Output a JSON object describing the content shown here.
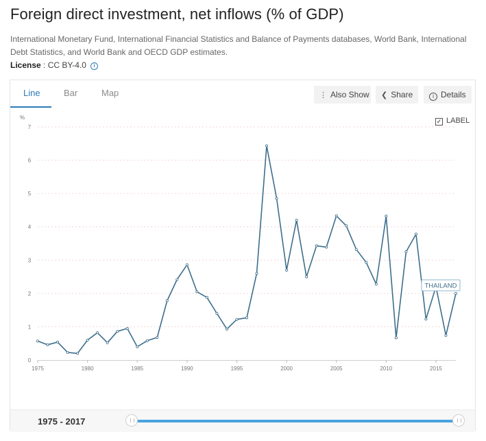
{
  "header": {
    "title": "Foreign direct investment, net inflows (% of GDP)",
    "source": "International Monetary Fund, International Financial Statistics and Balance of Payments databases, World Bank, International Debt Statistics, and World Bank and OECD GDP estimates.",
    "license_label": "License",
    "license_sep": " : ",
    "license_value": "CC BY-4.0",
    "info_glyph": "i"
  },
  "tabs": [
    {
      "label": "Line",
      "active": true
    },
    {
      "label": "Bar",
      "active": false
    },
    {
      "label": "Map",
      "active": false
    }
  ],
  "toolbar": {
    "also_show": "Also Show",
    "share": "Share",
    "details": "Details",
    "also_show_icon": "vertical-dots-icon",
    "share_icon": "share-icon",
    "details_icon": "info-icon"
  },
  "label_toggle": {
    "label": "LABEL",
    "checked": true
  },
  "range": {
    "label": "1975 - 2017",
    "start": 1975,
    "end": 2017
  },
  "colors": {
    "accent": "#2b7bb9",
    "line": "#3d6e8a",
    "grid": "#f3d6d6",
    "slider": "#4aa3df"
  },
  "chart_data": {
    "type": "line",
    "ylabel": "%",
    "xlim": [
      1975,
      2017
    ],
    "ylim": [
      0,
      7
    ],
    "yticks": [
      0,
      1,
      2,
      3,
      4,
      5,
      6,
      7
    ],
    "xticks": [
      1975,
      1980,
      1985,
      1990,
      1995,
      2000,
      2005,
      2010,
      2015
    ],
    "grid": true,
    "series": [
      {
        "name": "THAILAND",
        "x": [
          1975,
          1976,
          1977,
          1978,
          1979,
          1980,
          1981,
          1982,
          1983,
          1984,
          1985,
          1986,
          1987,
          1988,
          1989,
          1990,
          1991,
          1992,
          1993,
          1994,
          1995,
          1996,
          1997,
          1998,
          1999,
          2000,
          2001,
          2002,
          2003,
          2004,
          2005,
          2006,
          2007,
          2008,
          2009,
          2010,
          2011,
          2012,
          2013,
          2014,
          2015,
          2016,
          2017
        ],
        "values": [
          0.57,
          0.46,
          0.54,
          0.23,
          0.2,
          0.6,
          0.82,
          0.52,
          0.86,
          0.95,
          0.4,
          0.58,
          0.68,
          1.78,
          2.42,
          2.86,
          2.05,
          1.88,
          1.4,
          0.93,
          1.22,
          1.27,
          2.6,
          6.43,
          4.85,
          2.7,
          4.2,
          2.5,
          3.43,
          3.39,
          4.33,
          4.03,
          3.32,
          2.93,
          2.28,
          4.32,
          0.67,
          3.25,
          3.78,
          1.23,
          2.2,
          0.74,
          2.0
        ]
      }
    ]
  }
}
